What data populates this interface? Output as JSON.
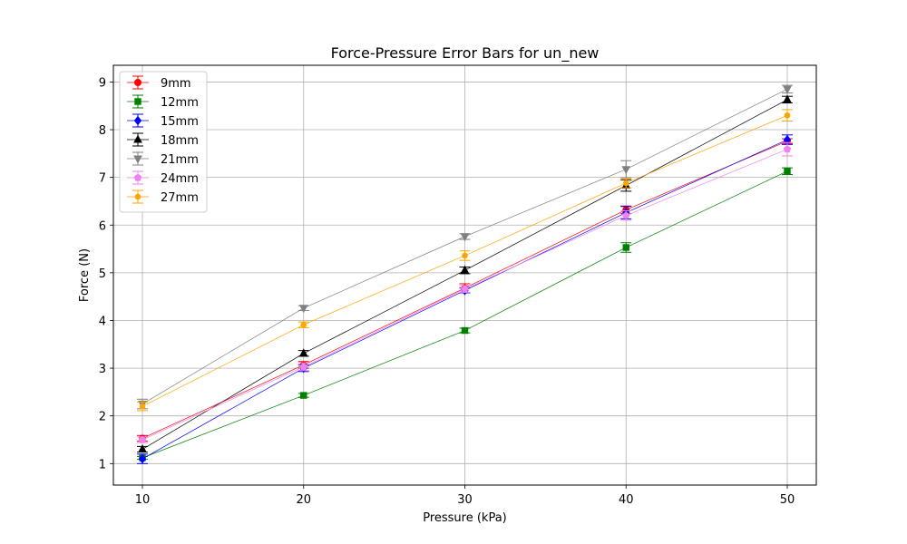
{
  "chart_data": {
    "type": "line",
    "title": "Force-Pressure Error Bars for un_new",
    "xlabel": "Pressure (kPa)",
    "ylabel": "Force (N)",
    "x": [
      10,
      20,
      30,
      40,
      50
    ],
    "xlim": [
      8.2,
      51.8
    ],
    "ylim": [
      0.55,
      9.35
    ],
    "xticks": [
      "10",
      "20",
      "30",
      "40",
      "50"
    ],
    "yticks": [
      "1",
      "2",
      "3",
      "4",
      "5",
      "6",
      "7",
      "8",
      "9"
    ],
    "grid": true,
    "legend_position": "top-left",
    "error_bars": true,
    "series": [
      {
        "name": "9mm",
        "color": "#ff0000",
        "marker": "circle",
        "values": [
          1.53,
          3.07,
          4.68,
          6.32,
          7.76
        ],
        "errors": [
          0.06,
          0.07,
          0.09,
          0.08,
          0.05
        ]
      },
      {
        "name": "12mm",
        "color": "#008000",
        "marker": "square",
        "values": [
          1.12,
          2.43,
          3.79,
          5.53,
          7.13
        ],
        "errors": [
          0.03,
          0.04,
          0.05,
          0.1,
          0.07
        ]
      },
      {
        "name": "15mm",
        "color": "#0000ff",
        "marker": "diamond",
        "values": [
          1.1,
          3.0,
          4.63,
          6.26,
          7.79
        ],
        "errors": [
          0.1,
          0.07,
          0.05,
          0.13,
          0.1
        ]
      },
      {
        "name": "18mm",
        "color": "#000000",
        "marker": "triangle-up",
        "values": [
          1.3,
          3.31,
          5.05,
          6.83,
          8.63
        ],
        "errors": [
          0.06,
          0.06,
          0.07,
          0.12,
          0.07
        ]
      },
      {
        "name": "21mm",
        "color": "#808080",
        "marker": "triangle-down",
        "values": [
          2.25,
          4.26,
          5.76,
          7.17,
          8.85
        ],
        "errors": [
          0.1,
          0.05,
          0.06,
          0.18,
          0.08
        ]
      },
      {
        "name": "24mm",
        "color": "#ee82ee",
        "marker": "pentagon",
        "values": [
          1.5,
          3.03,
          4.66,
          6.2,
          7.59
        ],
        "errors": [
          0.06,
          0.08,
          0.07,
          0.1,
          0.14
        ]
      },
      {
        "name": "27mm",
        "color": "#ffa500",
        "marker": "small-circle",
        "values": [
          2.2,
          3.91,
          5.36,
          6.88,
          8.3
        ],
        "errors": [
          0.09,
          0.06,
          0.1,
          0.1,
          0.12
        ]
      }
    ]
  }
}
